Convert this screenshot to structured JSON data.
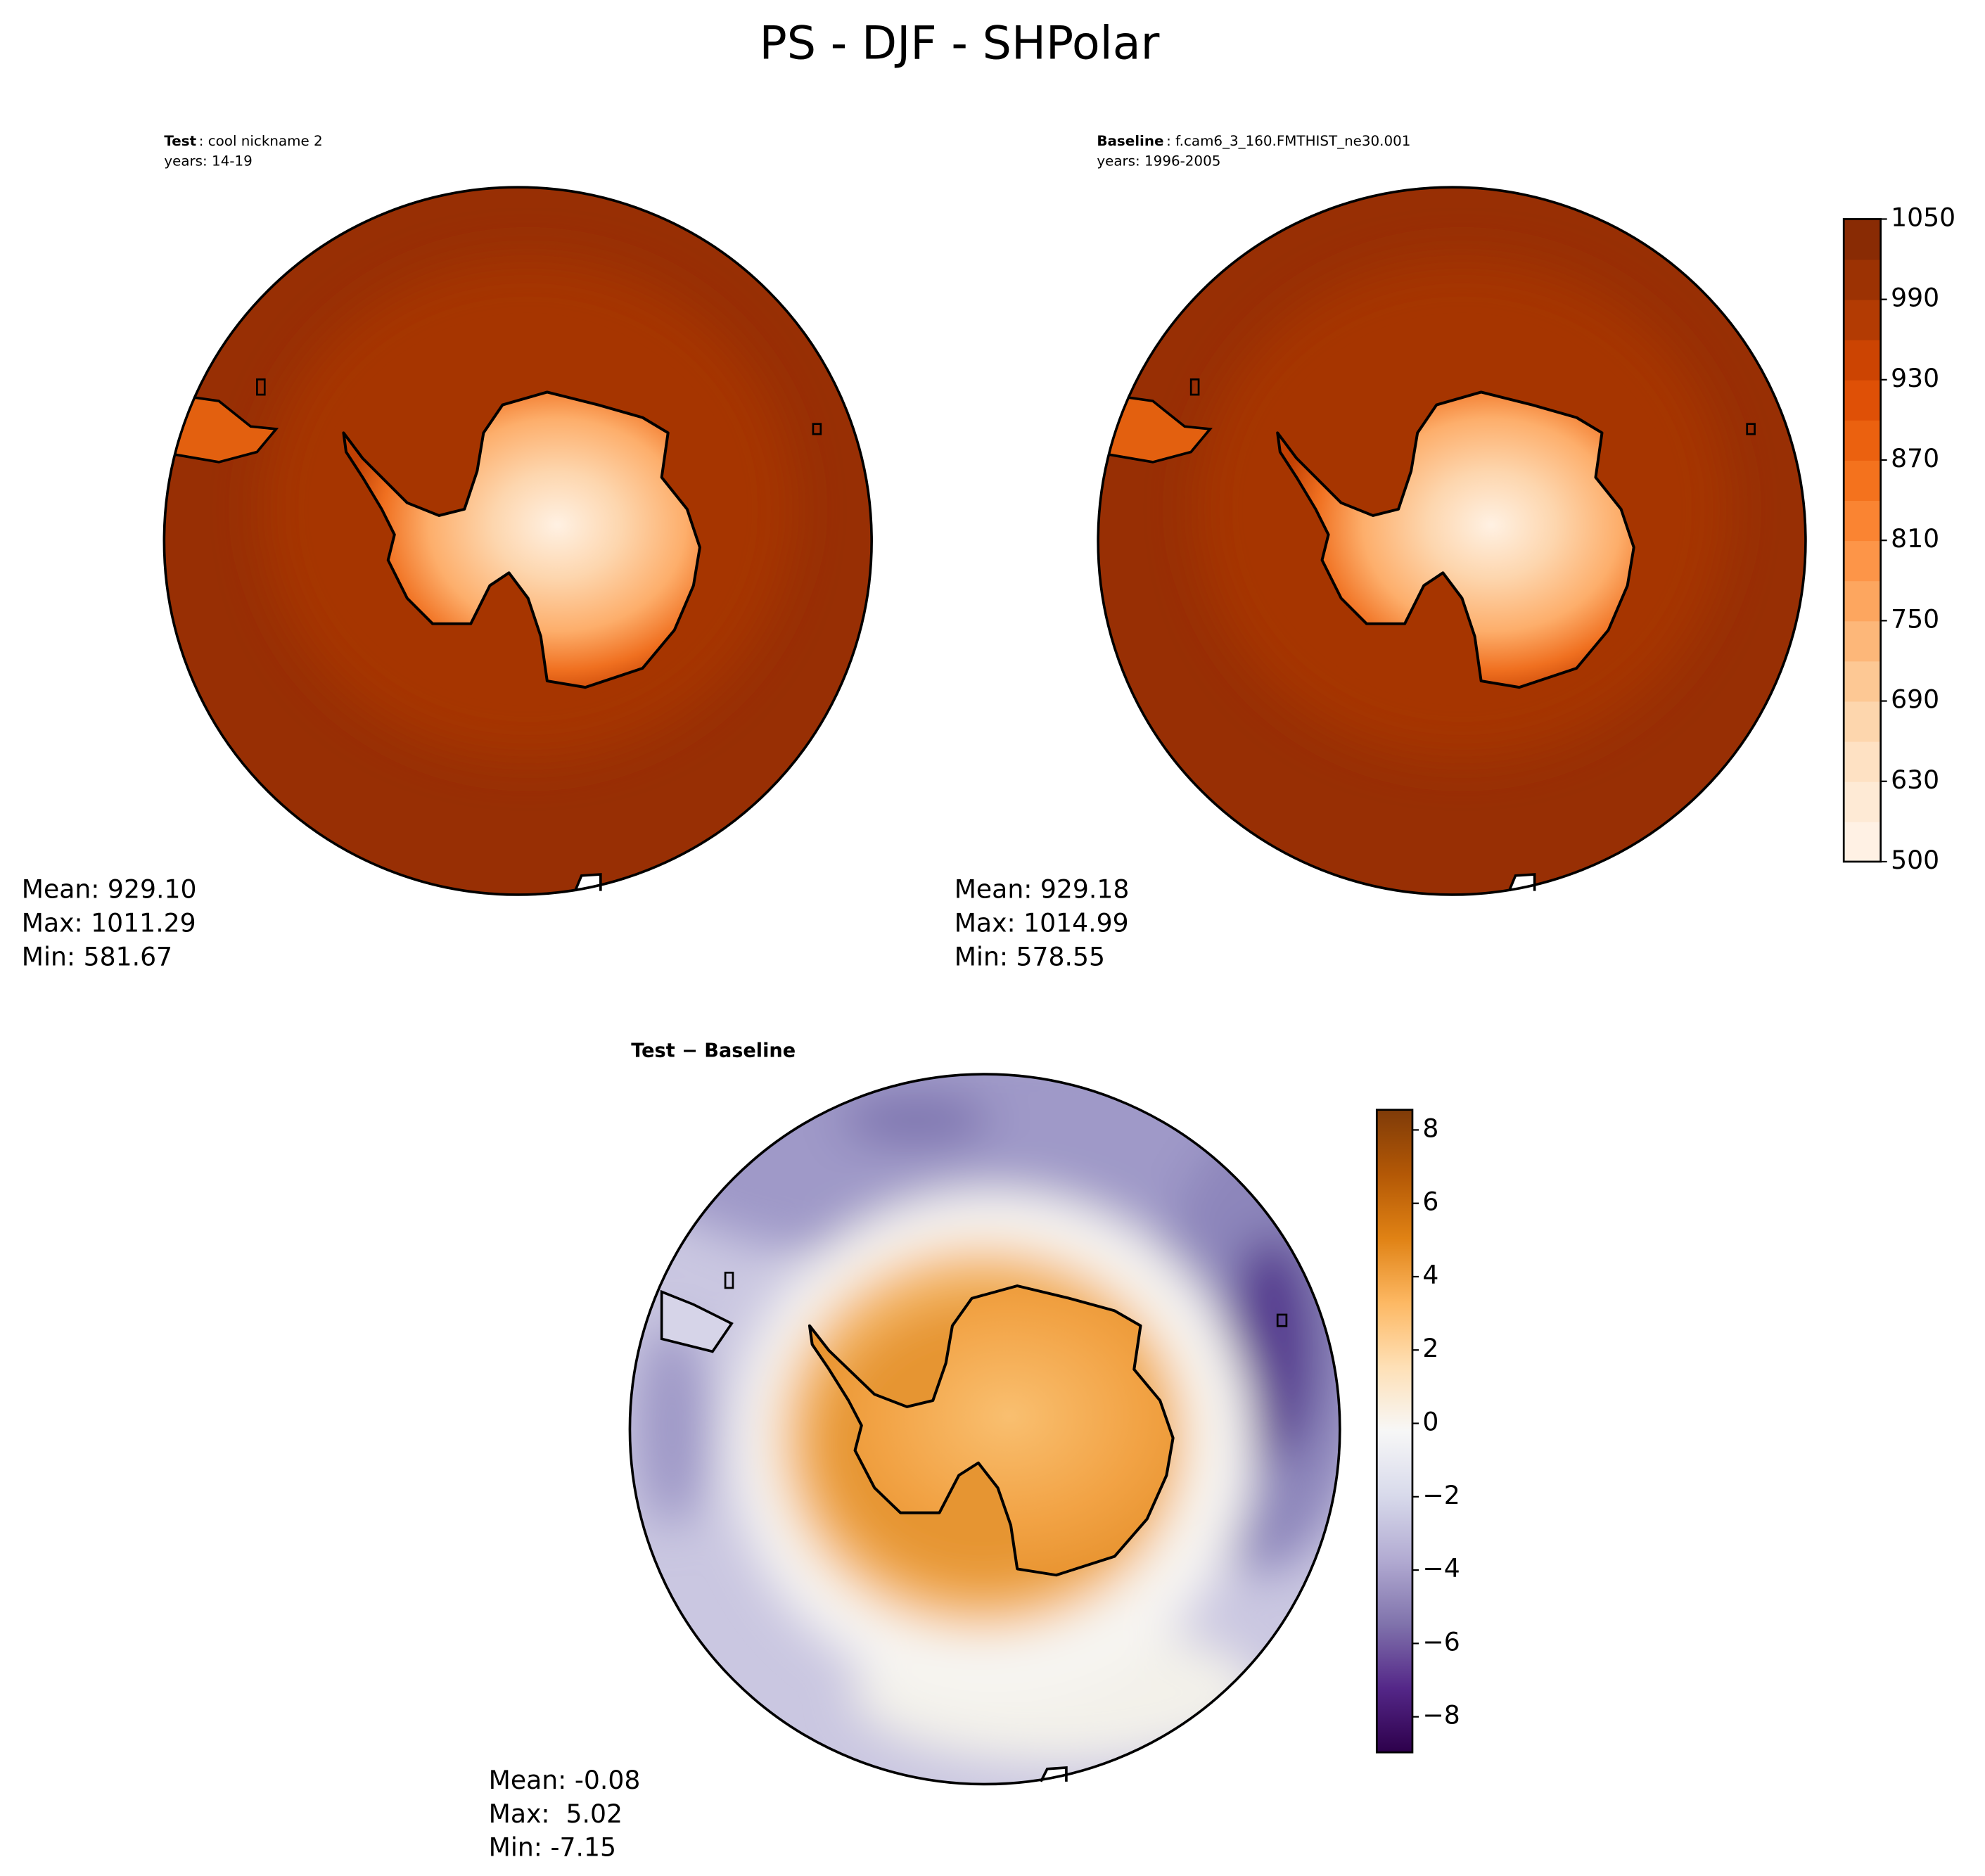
{
  "title": "PS - DJF - SHPolar",
  "chart_data": [
    {
      "type": "map",
      "label": "Test",
      "name": ": cool nickname 2",
      "years": "years: 14-19",
      "stats": [
        "Mean: 929.10",
        "Max: 1011.29",
        "Min: 581.67"
      ]
    },
    {
      "type": "map",
      "label": "Baseline",
      "name": ": f.cam6_3_160.FMTHIST_ne30.001",
      "years": "years: 1996-2005",
      "stats": [
        "Mean: 929.18",
        "Max: 1014.99",
        "Min: 578.55"
      ],
      "colorbar": {
        "levels": [
          500,
          600,
          630,
          660,
          690,
          720,
          750,
          780,
          810,
          840,
          870,
          900,
          930,
          960,
          990,
          1020,
          1050
        ],
        "ticks": [
          500,
          630,
          690,
          750,
          810,
          870,
          930,
          990,
          1050
        ],
        "cmap": [
          "#fff5eb",
          "#fee6ce",
          "#fdd0a2",
          "#fdae6b",
          "#fd8d3c",
          "#f16913",
          "#d94801",
          "#a63603",
          "#7f2704"
        ]
      }
    },
    {
      "type": "map",
      "label": "Test − Baseline",
      "stats": [
        "Mean: -0.08",
        "Max:  5.02",
        "Min: -7.15"
      ],
      "colorbar": {
        "ylim": [
          -8.97,
          8.55
        ],
        "ticks": [
          {
            "value": -8,
            "label": "−8"
          },
          {
            "value": -6,
            "label": "−6"
          },
          {
            "value": -4,
            "label": "−4"
          },
          {
            "value": -2,
            "label": "−2"
          },
          0,
          2,
          4,
          6,
          8
        ],
        "cmap": [
          "#2d004b",
          "#542788",
          "#8073ac",
          "#b2abd2",
          "#d8daeb",
          "#f7f7f7",
          "#fee0b6",
          "#fdb863",
          "#e08214",
          "#b35806",
          "#7f3b08"
        ]
      }
    }
  ]
}
